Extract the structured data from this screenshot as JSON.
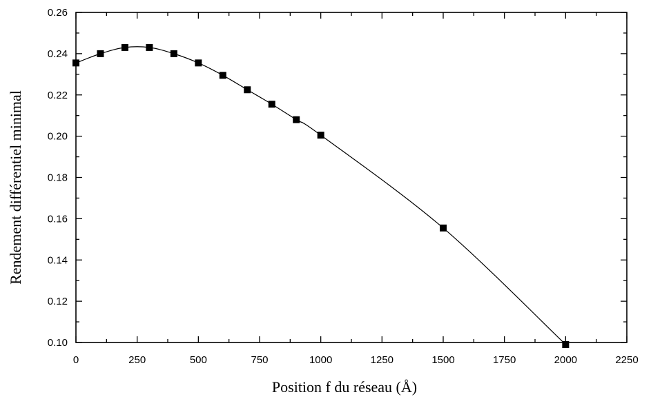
{
  "chart_data": {
    "type": "line",
    "title": "",
    "xlabel": "Position f du réseau (Å)",
    "ylabel": "Rendement différentiel minimal",
    "xlim": [
      0,
      2250
    ],
    "ylim": [
      0.1,
      0.26
    ],
    "xticks": [
      0,
      250,
      500,
      750,
      1000,
      1250,
      1500,
      1750,
      2000,
      2250
    ],
    "yticks": [
      0.1,
      0.12,
      0.14,
      0.16,
      0.18,
      0.2,
      0.22,
      0.24,
      0.26
    ],
    "xtick_labels": [
      "0",
      "250",
      "500",
      "750",
      "1000",
      "1250",
      "1500",
      "1750",
      "2000",
      "2250"
    ],
    "ytick_labels": [
      "0.10",
      "0.12",
      "0.14",
      "0.16",
      "0.18",
      "0.20",
      "0.22",
      "0.24",
      "0.26"
    ],
    "grid": false,
    "marker": "filled-square",
    "line_color": "#000000",
    "series": [
      {
        "x": [
          0,
          100,
          200,
          300,
          400,
          500,
          600,
          700,
          800,
          900,
          1000,
          1500,
          2000
        ],
        "y": [
          0.2355,
          0.24,
          0.243,
          0.243,
          0.24,
          0.2355,
          0.2295,
          0.2225,
          0.2155,
          0.208,
          0.2005,
          0.1555,
          0.099
        ]
      }
    ]
  }
}
